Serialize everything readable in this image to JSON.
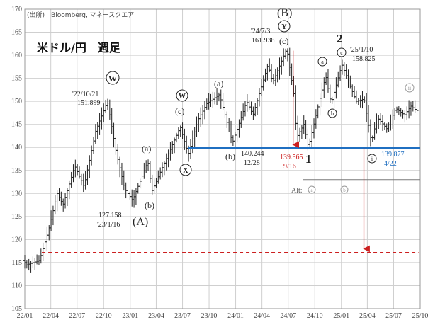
{
  "chart_data": {
    "type": "ohlc",
    "title": "米ドル/円　週足",
    "source": "(出所)　Bloomberg, マネースクエア",
    "ylim": [
      105,
      170
    ],
    "yticks": [
      105,
      110,
      115,
      120,
      125,
      130,
      135,
      140,
      145,
      150,
      155,
      160,
      165,
      170
    ],
    "xlim": [
      "2022-01-01",
      "2025-10-01"
    ],
    "xticks": [
      "22/01",
      "22/04",
      "22/07",
      "22/10",
      "23/01",
      "23/04",
      "23/07",
      "23/10",
      "24/01",
      "24/04",
      "24/07",
      "24/10",
      "25/01",
      "25/04",
      "25/07",
      "25/10"
    ],
    "grid": true,
    "anchors": [
      {
        "date": "2022-01-01",
        "value": 115.5
      },
      {
        "date": "2022-01-15",
        "value": 114.5
      },
      {
        "date": "2022-02-28",
        "value": 115.5
      },
      {
        "date": "2022-03-31",
        "value": 122
      },
      {
        "date": "2022-04-30",
        "value": 130
      },
      {
        "date": "2022-05-20",
        "value": 127.5
      },
      {
        "date": "2022-06-30",
        "value": 136
      },
      {
        "date": "2022-08-01",
        "value": 131.5
      },
      {
        "date": "2022-09-10",
        "value": 143.5
      },
      {
        "date": "2022-10-21",
        "value": 150
      },
      {
        "date": "2022-11-20",
        "value": 139
      },
      {
        "date": "2022-12-20",
        "value": 131
      },
      {
        "date": "2023-01-16",
        "value": 128.5
      },
      {
        "date": "2023-03-10",
        "value": 137
      },
      {
        "date": "2023-03-24",
        "value": 130.5
      },
      {
        "date": "2023-05-30",
        "value": 140
      },
      {
        "date": "2023-06-30",
        "value": 144.5
      },
      {
        "date": "2023-07-28",
        "value": 138.5
      },
      {
        "date": "2023-08-31",
        "value": 146
      },
      {
        "date": "2023-09-30",
        "value": 149.5
      },
      {
        "date": "2023-11-13",
        "value": 151.5
      },
      {
        "date": "2023-12-28",
        "value": 141
      },
      {
        "date": "2024-02-15",
        "value": 150
      },
      {
        "date": "2024-03-08",
        "value": 147
      },
      {
        "date": "2024-04-29",
        "value": 158
      },
      {
        "date": "2024-05-15",
        "value": 154
      },
      {
        "date": "2024-07-03",
        "value": 161.5
      },
      {
        "date": "2024-07-31",
        "value": 150
      },
      {
        "date": "2024-08-05",
        "value": 142
      },
      {
        "date": "2024-08-31",
        "value": 145
      },
      {
        "date": "2024-09-16",
        "value": 140
      },
      {
        "date": "2024-10-31",
        "value": 152
      },
      {
        "date": "2024-11-15",
        "value": 155.5
      },
      {
        "date": "2024-12-03",
        "value": 149.5
      },
      {
        "date": "2025-01-10",
        "value": 158
      },
      {
        "date": "2025-02-28",
        "value": 150
      },
      {
        "date": "2025-03-28",
        "value": 150.5
      },
      {
        "date": "2025-04-22",
        "value": 141
      },
      {
        "date": "2025-05-12",
        "value": 146.5
      },
      {
        "date": "2025-06-15",
        "value": 144
      },
      {
        "date": "2025-07-15",
        "value": 148.5
      },
      {
        "date": "2025-08-15",
        "value": 147
      },
      {
        "date": "2025-09-05",
        "value": 149
      },
      {
        "date": "2025-09-25",
        "value": 148
      }
    ],
    "support_level": 139.877,
    "target_level": 117.2,
    "alt_level": 133
  },
  "annotations": {
    "wave_B": "(B)",
    "wave_A": "(A)",
    "w_2022": "W",
    "w_2023": "W",
    "x_2023": "X",
    "y_2024": "Y",
    "a_2023_01": "(a)",
    "b_2023_03": "(b)",
    "c_2023_07": "(c)",
    "a_2023_10": "(a)",
    "b_2023_12": "(b)",
    "c_2024_07": "(c)",
    "a_2024_11": "a",
    "b_2024_12": "b",
    "c_2025_01": "c",
    "i_2025_04": "i",
    "ii_2025_08": "ii",
    "one": "1",
    "two": "2",
    "alt_label": "Alt:",
    "alt_a": "a",
    "alt_b": "b"
  },
  "notes": {
    "peak_2022_date": "'22/10/21",
    "peak_2022_value": "151.899",
    "low_2023_value": "127.158",
    "low_2023_date": "'23/1/16",
    "peak_2024_date": "'24/7/3",
    "peak_2024_value": "161.938",
    "low_2023b_value": "140.244",
    "low_2023b_date": "12/28",
    "low_2024_value": "139.565",
    "low_2024_date": "9/16",
    "peak_2025_date": "'25/1/10",
    "peak_2025_value": "158.825",
    "low_2025_value": "139.877",
    "low_2025_date": "4/22"
  },
  "colors": {
    "bars": "#222222",
    "grid": "#cfcfcf",
    "support": "#1f6fc1",
    "target": "#cc1f1f",
    "arrow": "#cc1f1f",
    "alt": "#7a7a7a",
    "note_red": "#cc1f1f",
    "note_blue": "#1f6fc1",
    "grey_label": "#999999"
  }
}
